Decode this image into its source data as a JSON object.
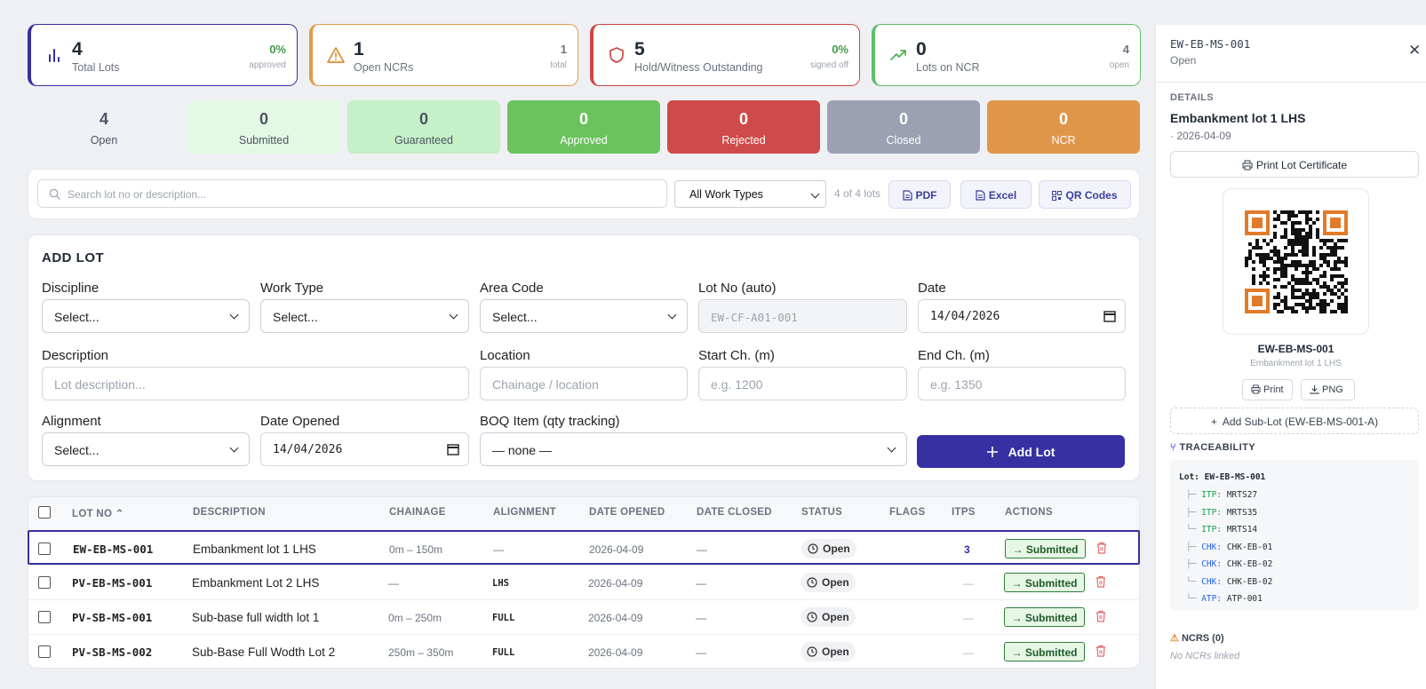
{
  "stats": [
    {
      "value": "4",
      "label": "Total Lots",
      "right_value": "0%",
      "right_label": "approved",
      "icon": "bar-chart-icon"
    },
    {
      "value": "1",
      "label": "Open NCRs",
      "right_value": "1",
      "right_label": "total",
      "icon": "warning-triangle-icon"
    },
    {
      "value": "5",
      "label": "Hold/Witness Outstanding",
      "right_value": "0%",
      "right_label": "signed off",
      "icon": "shield-icon"
    },
    {
      "value": "0",
      "label": "Lots on NCR",
      "right_value": "4",
      "right_label": "open",
      "icon": "trend-up-icon"
    }
  ],
  "status_pills": [
    {
      "count": "4",
      "label": "Open"
    },
    {
      "count": "0",
      "label": "Submitted"
    },
    {
      "count": "0",
      "label": "Guaranteed"
    },
    {
      "count": "0",
      "label": "Approved"
    },
    {
      "count": "0",
      "label": "Rejected"
    },
    {
      "count": "0",
      "label": "Closed"
    },
    {
      "count": "0",
      "label": "NCR"
    }
  ],
  "toolbar": {
    "search_placeholder": "Search lot no or description...",
    "work_type": "All Work Types",
    "lot_count": "4 of 4 lots",
    "pdf": "PDF",
    "excel": "Excel",
    "qr": "QR Codes"
  },
  "form": {
    "title": "ADD LOT",
    "discipline_label": "Discipline",
    "discipline_value": "Select...",
    "work_type_label": "Work Type",
    "work_type_value": "Select...",
    "area_code_label": "Area Code",
    "area_code_value": "Select...",
    "lot_no_label": "Lot No (auto)",
    "lot_no_placeholder": "EW-CF-A01-001",
    "date_label": "Date",
    "date_value": "14/04/2026",
    "description_label": "Description",
    "description_placeholder": "Lot description...",
    "location_label": "Location",
    "location_placeholder": "Chainage / location",
    "start_label": "Start Ch. (m)",
    "start_placeholder": "e.g. 1200",
    "end_label": "End Ch. (m)",
    "end_placeholder": "e.g. 1350",
    "alignment_label": "Alignment",
    "alignment_value": "Select...",
    "date_opened_label": "Date Opened",
    "date_opened_value": "14/04/2026",
    "boq_label": "BOQ Item (qty tracking)",
    "boq_value": "— none —",
    "add_button": "Add Lot"
  },
  "table": {
    "headers": [
      "LOT NO",
      "DESCRIPTION",
      "CHAINAGE",
      "ALIGNMENT",
      "DATE OPENED",
      "DATE CLOSED",
      "STATUS",
      "FLAGS",
      "ITPS",
      "ACTIONS"
    ],
    "rows": [
      {
        "lot": "EW-EB-MS-001",
        "desc": "Embankment lot 1 LHS",
        "chainage": "0m – 150m",
        "alignment": "—",
        "opened": "2026-04-09",
        "closed": "—",
        "status": "Open",
        "itps": "3",
        "action": "→ Submitted"
      },
      {
        "lot": "PV-EB-MS-001",
        "desc": "Embankment Lot 2 LHS",
        "chainage": "—",
        "alignment": "LHS",
        "opened": "2026-04-09",
        "closed": "—",
        "status": "Open",
        "itps": "—",
        "action": "→ Submitted"
      },
      {
        "lot": "PV-SB-MS-001",
        "desc": "Sub-base full width lot 1",
        "chainage": "0m – 250m",
        "alignment": "FULL",
        "opened": "2026-04-09",
        "closed": "—",
        "status": "Open",
        "itps": "—",
        "action": "→ Submitted"
      },
      {
        "lot": "PV-SB-MS-002",
        "desc": "Sub-Base Full Wodth Lot 2",
        "chainage": "250m – 350m",
        "alignment": "FULL",
        "opened": "2026-04-09",
        "closed": "—",
        "status": "Open",
        "itps": "—",
        "action": "→ Submitted"
      }
    ]
  },
  "panel": {
    "lot": "EW-EB-MS-001",
    "status": "Open",
    "details_label": "DETAILS",
    "desc": "Embankment lot 1 LHS",
    "date": "· 2026-04-09",
    "print_cert": "Print Lot Certificate",
    "qr_lot": "EW-EB-MS-001",
    "qr_desc": "Embankment lot 1 LHS",
    "print": "Print",
    "png": "PNG",
    "add_sublot": "Add Sub-Lot (EW-EB-MS-001-A)",
    "traceability_label": "TRACEABILITY",
    "trace": {
      "root_key": "Lot:",
      "root_val": "EW-EB-MS-001",
      "items": [
        {
          "prefix": "├─",
          "key": "ITP:",
          "val": "MRTS27",
          "color": "#16a34a"
        },
        {
          "prefix": "├─",
          "key": "ITP:",
          "val": "MRTS35",
          "color": "#16a34a"
        },
        {
          "prefix": "└─",
          "key": "ITP:",
          "val": "MRTS14",
          "color": "#16a34a"
        },
        {
          "prefix": "├─",
          "key": "CHK:",
          "val": "CHK-EB-01",
          "color": "#2563eb"
        },
        {
          "prefix": "├─",
          "key": "CHK:",
          "val": "CHK-EB-02",
          "color": "#2563eb"
        },
        {
          "prefix": "└─",
          "key": "CHK:",
          "val": "CHK-EB-02",
          "color": "#2563eb"
        },
        {
          "prefix": "└─",
          "key": "ATP:",
          "val": "ATP-001",
          "color": "#2563eb"
        }
      ]
    },
    "ncrs_label": "NCRS (0)",
    "no_ncrs": "No NCRs linked"
  },
  "colors": {
    "accent": "#3730a3",
    "submitted_bg": "#e3f9e4",
    "guaranteed_bg": "#c6f0c8",
    "approved_bg": "#6cc25f",
    "rejected_bg": "#cf4a4a",
    "closed_bg": "#9ba1b3",
    "ncr_bg": "#e0964a"
  }
}
